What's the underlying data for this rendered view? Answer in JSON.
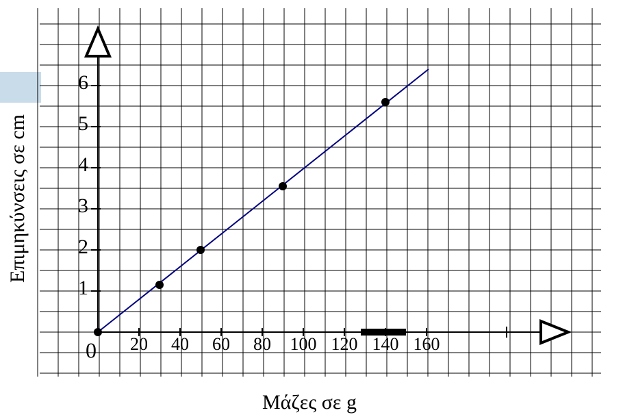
{
  "chart_data": {
    "type": "scatter",
    "x_label": "Μάζες σε g",
    "y_label": "Επιμηκύνσεις σε cm",
    "x": [
      0,
      30,
      50,
      90,
      140
    ],
    "values": [
      0,
      1.15,
      2,
      3.55,
      5.6
    ],
    "color": "#000000",
    "line": {
      "x": [
        0,
        161
      ],
      "values": [
        0,
        6.4
      ],
      "color": "#000080"
    },
    "xlim": [
      -30,
      245
    ],
    "ylim": [
      -1,
      7.8
    ],
    "xticks": [
      0,
      20,
      40,
      60,
      80,
      100,
      120,
      140,
      160
    ],
    "yticks": [
      1,
      2,
      3,
      4,
      5,
      6
    ],
    "grid": true
  }
}
